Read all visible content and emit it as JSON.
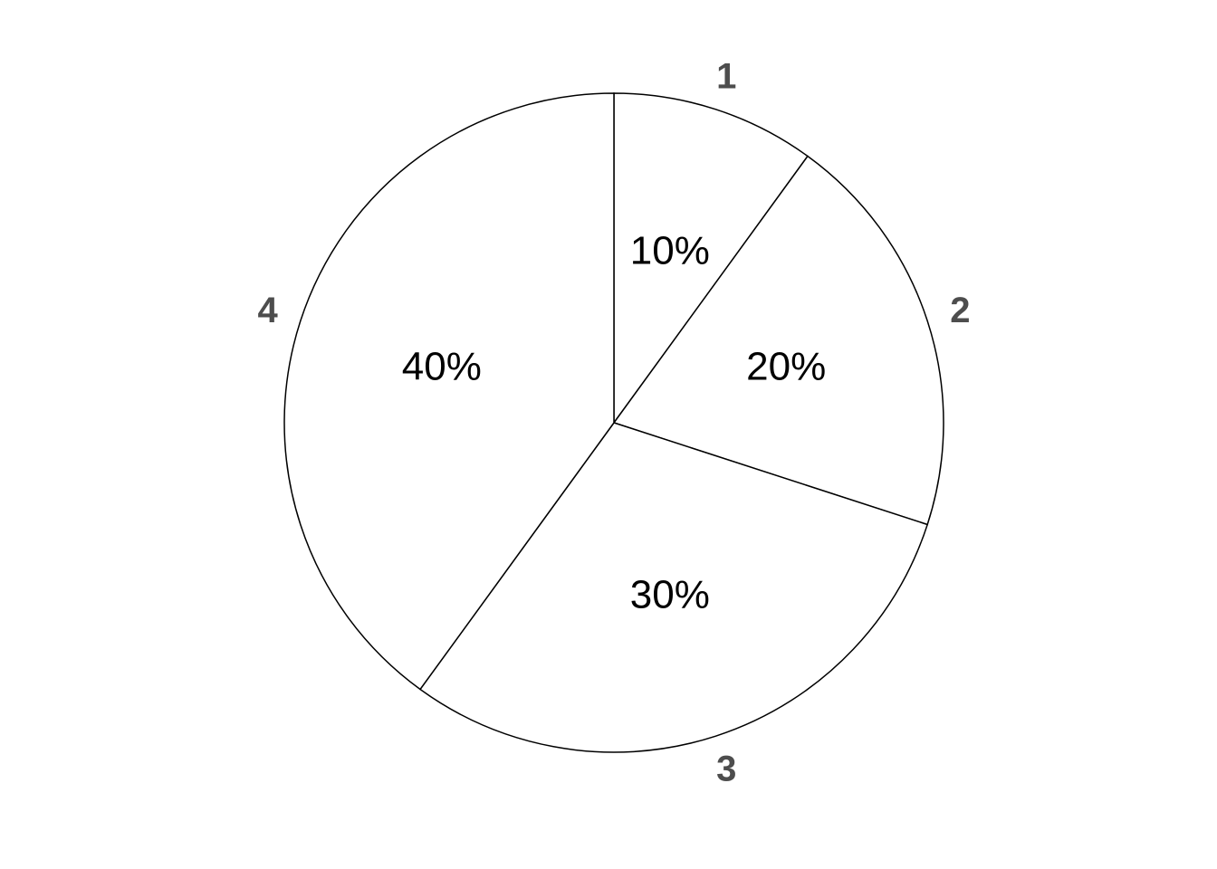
{
  "chart_data": {
    "type": "pie",
    "categories": [
      "1",
      "2",
      "3",
      "4"
    ],
    "values": [
      10,
      20,
      30,
      40
    ],
    "labels": [
      "10%",
      "20%",
      "30%",
      "40%"
    ],
    "direction": "clockwise",
    "start": "top",
    "grid": false,
    "legend": "none",
    "colors": {
      "slice_fill": "#ffffff",
      "slice_stroke": "#000000",
      "value_text": "#000000",
      "category_text": "#4d4d4d"
    }
  }
}
